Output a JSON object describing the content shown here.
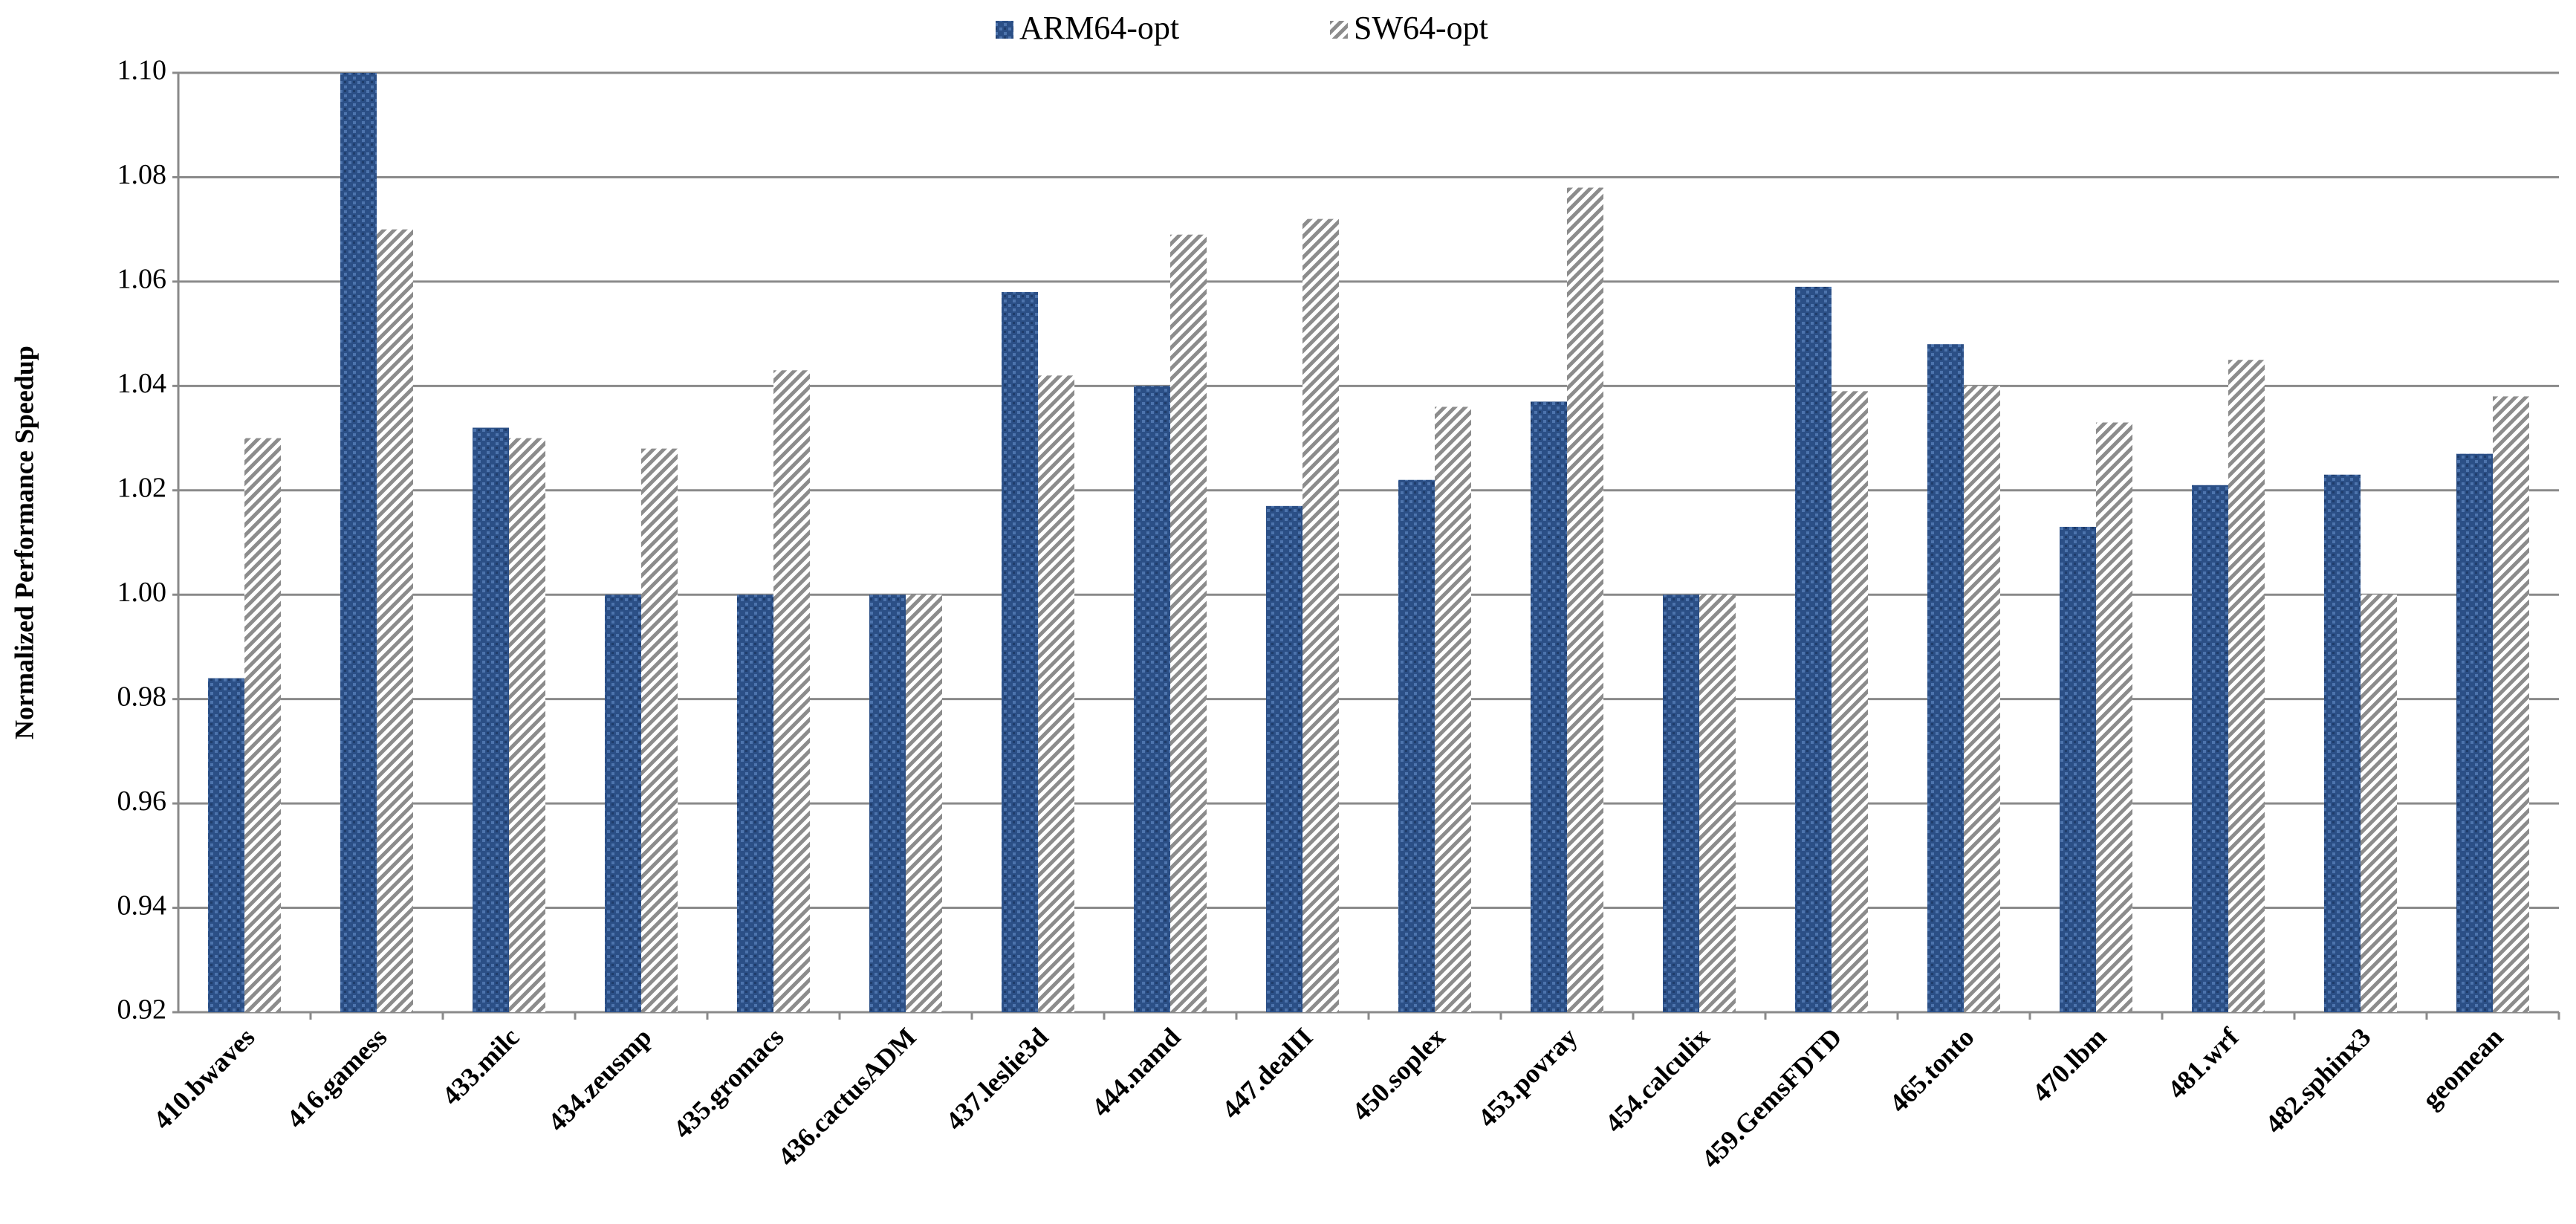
{
  "chart_data": {
    "type": "bar",
    "y_label": "Normalized Performance Speedup",
    "categories": [
      "410.bwaves",
      "416.gamess",
      "433.milc",
      "434.zeusmp",
      "435.gromacs",
      "436.cactusADM",
      "437.leslie3d",
      "444.namd",
      "447.dealII",
      "450.soplex",
      "453.povray",
      "454.calculix",
      "459.GemsFDTD",
      "465.tonto",
      "470.lbm",
      "481.wrf",
      "482.sphinx3",
      "geomean"
    ],
    "series": [
      {
        "name": "ARM64-opt",
        "color": "#2b4f86",
        "values": [
          0.984,
          1.1,
          1.032,
          1.0,
          1.0,
          1.0,
          1.058,
          1.04,
          1.017,
          1.022,
          1.037,
          1.0,
          1.059,
          1.048,
          1.013,
          1.021,
          1.023,
          1.027
        ]
      },
      {
        "name": "SW64-opt",
        "color": "#8c8c8c",
        "values": [
          1.03,
          1.07,
          1.03,
          1.028,
          1.043,
          1.0,
          1.042,
          1.069,
          1.072,
          1.036,
          1.078,
          1.0,
          1.039,
          1.04,
          1.033,
          1.045,
          1.0,
          1.038
        ]
      }
    ],
    "ylim": [
      0.92,
      1.1
    ],
    "yticks": [
      0.92,
      0.94,
      0.96,
      0.98,
      {
        "value": 1.0,
        "label": "1.00"
      },
      1.02,
      1.04,
      1.06,
      1.08,
      {
        "value": 1.1,
        "label": "1.10"
      }
    ],
    "grid": true,
    "legend": "top"
  }
}
